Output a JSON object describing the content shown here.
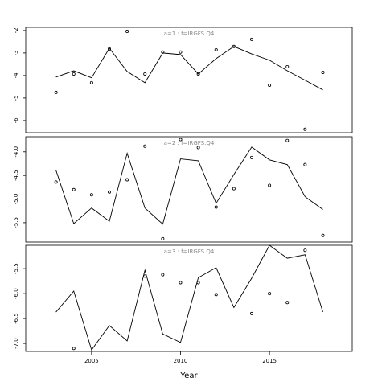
{
  "chart_data": [
    {
      "type": "line",
      "annotation": "a=1  :  f=IRGFS.Q4",
      "x": [
        2003,
        2004,
        2005,
        2006,
        2007,
        2008,
        2009,
        2010,
        2011,
        2012,
        2013,
        2014,
        2015,
        2016,
        2017,
        2018
      ],
      "xlim": [
        2001.3,
        2019.65
      ],
      "ylim": [
        -1.86,
        -6.54
      ],
      "yticks": [
        -2,
        -3,
        -4,
        -5,
        -6
      ],
      "series": [
        {
          "style": "line",
          "color": "#000000",
          "values": [
            -4.07,
            -3.79,
            -4.1,
            -2.79,
            -3.82,
            -4.32,
            -3.0,
            -3.07,
            -3.93,
            -3.25,
            -2.71,
            -3.04,
            -3.32,
            -3.79,
            -4.21,
            -4.64
          ]
        },
        {
          "style": "points",
          "color": "#000000",
          "values": [
            -4.75,
            -3.93,
            -4.32,
            -2.82,
            -2.04,
            -3.93,
            -2.96,
            -2.96,
            -3.93,
            -2.86,
            -2.71,
            -2.39,
            -4.43,
            -3.61,
            -6.39,
            -3.86
          ]
        }
      ]
    },
    {
      "type": "line",
      "annotation": "a=2  :  f=IRGFS.Q4",
      "x": [
        2003,
        2004,
        2005,
        2006,
        2007,
        2008,
        2009,
        2010,
        2011,
        2012,
        2013,
        2014,
        2015,
        2016,
        2017,
        2018
      ],
      "xlim": [
        2001.3,
        2019.65
      ],
      "ylim": [
        -3.68,
        -5.91
      ],
      "yticks": [
        {
          "value": -4,
          "label": "-4.0"
        },
        -4.5,
        {
          "value": -5,
          "label": "-5.0"
        },
        -5.5
      ],
      "series": [
        {
          "style": "line",
          "color": "#000000",
          "values": [
            -4.39,
            -5.52,
            -5.19,
            -5.47,
            -4.03,
            -5.19,
            -5.53,
            -4.15,
            -4.19,
            -5.09,
            -4.48,
            -3.9,
            -4.17,
            -4.27,
            -4.95,
            -5.22
          ]
        },
        {
          "style": "points",
          "color": "#000000",
          "values": [
            -4.64,
            -4.8,
            -4.91,
            -4.85,
            -4.59,
            -3.88,
            -5.84,
            -3.74,
            -3.91,
            -5.17,
            -4.78,
            -4.12,
            -4.71,
            -3.76,
            -4.27,
            -5.77
          ]
        }
      ]
    },
    {
      "type": "line",
      "annotation": "a=3  :  f=IRGFS.Q4",
      "xlabel": "Year",
      "x": [
        2003,
        2004,
        2005,
        2006,
        2007,
        2008,
        2009,
        2010,
        2011,
        2012,
        2013,
        2014,
        2015,
        2016,
        2017,
        2018
      ],
      "xlim": [
        2001.3,
        2019.65
      ],
      "xticks": [
        2005,
        2010,
        2015
      ],
      "ylim": [
        -5.03,
        -7.16
      ],
      "yticks": [
        -5.5,
        {
          "value": -6,
          "label": "-6.0"
        },
        -6.5,
        {
          "value": -7,
          "label": "-7.0"
        }
      ],
      "series": [
        {
          "style": "line",
          "color": "#000000",
          "values": [
            -6.37,
            -5.95,
            -7.13,
            -6.64,
            -6.95,
            -5.53,
            -6.81,
            -6.98,
            -5.68,
            -5.48,
            -6.28,
            -5.69,
            -5.03,
            -5.29,
            -5.22,
            -6.37
          ]
        },
        {
          "style": "points",
          "color": "#000000",
          "values": [
            null,
            -7.1,
            null,
            null,
            null,
            -5.65,
            -5.62,
            -5.78,
            -5.78,
            -6.02,
            null,
            -6.4,
            -6.0,
            -6.18,
            -5.13,
            null
          ]
        }
      ]
    }
  ]
}
